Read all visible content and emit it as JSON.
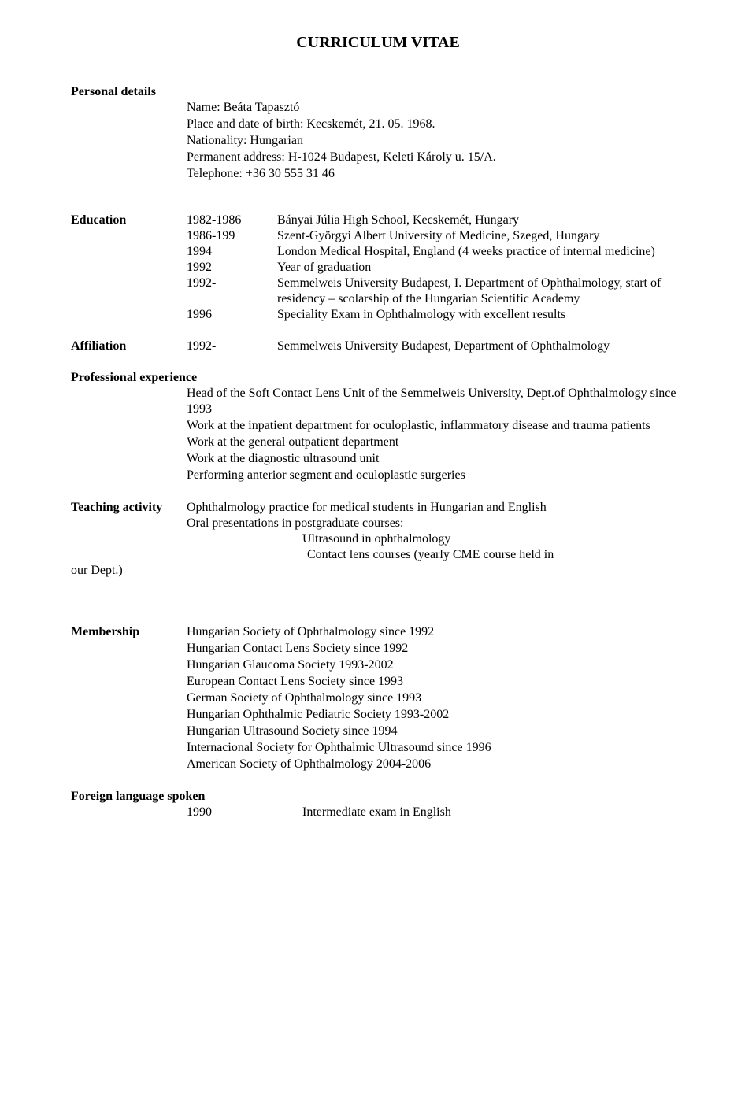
{
  "title": "CURRICULUM VITAE",
  "personal": {
    "heading": "Personal details",
    "name": "Name: Beáta Tapasztó",
    "birth": "Place and date of birth: Kecskemét, 21. 05. 1968.",
    "nationality": "Nationality: Hungarian",
    "address": "Permanent address: H-1024 Budapest, Keleti Károly u. 15/A.",
    "phone": "Telephone: +36 30 555 31 46"
  },
  "education": {
    "heading": "Education",
    "rows": [
      {
        "year": "1982-1986",
        "text": "Bányai Júlia High School, Kecskemét, Hungary"
      },
      {
        "year": "1986-199",
        "text": "Szent-Györgyi Albert University of Medicine, Szeged, Hungary"
      },
      {
        "year": "1994",
        "text": "London Medical Hospital, England (4 weeks practice of internal medicine)"
      },
      {
        "year": "1992",
        "text": "Year of graduation"
      },
      {
        "year": "1992-",
        "text": "Semmelweis University Budapest,  I. Department of Ophthalmology, start of residency – scolarship of the Hungarian Scientific Academy"
      },
      {
        "year": "1996",
        "text": "Speciality Exam in Ophthalmology with excellent results"
      }
    ]
  },
  "affiliation": {
    "heading": "Affiliation",
    "year": "1992-",
    "text": "Semmelweis University Budapest, Department of Ophthalmology"
  },
  "professional": {
    "heading": "Professional experience",
    "lines": [
      "Head of the Soft Contact Lens Unit of the Semmelweis University, Dept.of Ophthalmology since 1993",
      "Work at the inpatient department for oculoplastic, inflammatory disease and trauma patients",
      "Work at the general outpatient department",
      "Work at the diagnostic ultrasound unit",
      "Performing anterior segment and oculoplastic surgeries"
    ]
  },
  "teaching": {
    "heading": "Teaching activity",
    "line1": "Ophthalmology practice for medical students in Hungarian and English",
    "line2": "Oral presentations in postgraduate courses:",
    "sub1": "Ultrasound in ophthalmology",
    "sub2": "Contact lens courses (yearly CME course held in",
    "tail": "our Dept.)"
  },
  "membership": {
    "heading": "Membership",
    "lines": [
      "Hungarian Society of Ophthalmology since 1992",
      "Hungarian Contact Lens Society since 1992",
      "Hungarian Glaucoma Society 1993-2002",
      "European Contact Lens Society since 1993",
      "German Society of Ophthalmology since 1993",
      "Hungarian Ophthalmic Pediatric Society 1993-2002",
      "Hungarian Ultrasound Society since 1994",
      "Internacional Society for Ophthalmic Ultrasound since 1996",
      "American Society of Ophthalmology 2004-2006"
    ]
  },
  "language": {
    "heading": "Foreign language spoken",
    "year": "1990",
    "text": "Intermediate exam in English"
  }
}
